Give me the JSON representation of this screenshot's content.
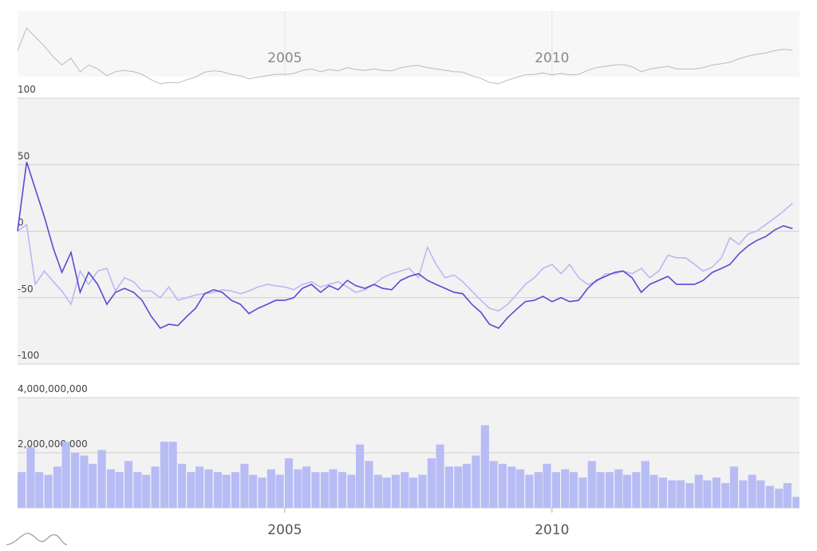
{
  "chart_data": [
    {
      "type": "line",
      "grid": true,
      "x": [
        2000,
        2000.17,
        2000.33,
        2000.5,
        2000.67,
        2000.83,
        2001,
        2001.17,
        2001.33,
        2001.5,
        2001.67,
        2001.83,
        2002,
        2002.17,
        2002.33,
        2002.5,
        2002.67,
        2002.83,
        2003,
        2003.17,
        2003.33,
        2003.5,
        2003.67,
        2003.83,
        2004,
        2004.17,
        2004.33,
        2004.5,
        2004.67,
        2004.83,
        2005,
        2005.17,
        2005.33,
        2005.5,
        2005.67,
        2005.83,
        2006,
        2006.17,
        2006.33,
        2006.5,
        2006.67,
        2006.83,
        2007,
        2007.17,
        2007.33,
        2007.5,
        2007.67,
        2007.83,
        2008,
        2008.17,
        2008.33,
        2008.5,
        2008.67,
        2008.83,
        2009,
        2009.17,
        2009.33,
        2009.5,
        2009.67,
        2009.83,
        2010,
        2010.17,
        2010.33,
        2010.5,
        2010.67,
        2010.83,
        2011,
        2011.17,
        2011.33,
        2011.5,
        2011.67,
        2011.83,
        2012,
        2012.17,
        2012.33,
        2012.5,
        2012.67,
        2012.83,
        2013,
        2013.17,
        2013.33,
        2013.5,
        2013.67,
        2013.83,
        2014,
        2014.17,
        2014.33,
        2014.5
      ],
      "xlim": [
        2000,
        2014.63
      ],
      "xticks": [
        2005,
        2010
      ],
      "ylim": [
        -100,
        100
      ],
      "yticks": [
        100,
        50,
        0,
        -50,
        -100
      ],
      "series": [
        {
          "color": "#b9b9f5",
          "values": [
            0,
            5,
            -40,
            -30,
            -38,
            -45,
            -55,
            -30,
            -40,
            -30,
            -28,
            -45,
            -35,
            -38,
            -45,
            -45,
            -50,
            -42,
            -52,
            -50,
            -48,
            -47,
            -46,
            -44,
            -45,
            -47,
            -45,
            -42,
            -40,
            -41,
            -42,
            -44,
            -40,
            -38,
            -42,
            -40,
            -38,
            -42,
            -46,
            -44,
            -40,
            -35,
            -32,
            -30,
            -28,
            -35,
            -12,
            -25,
            -35,
            -33,
            -38,
            -45,
            -52,
            -58,
            -60,
            -55,
            -48,
            -40,
            -35,
            -28,
            -25,
            -32,
            -25,
            -35,
            -40,
            -38,
            -32,
            -32,
            -30,
            -32,
            -28,
            -35,
            -30,
            -18,
            -20,
            -20,
            -25,
            -30,
            -27,
            -20,
            -5,
            -10,
            -2,
            0,
            5,
            10,
            15,
            21
          ]
        },
        {
          "color": "#5a4bd2",
          "values": [
            0,
            52,
            32,
            11,
            -13,
            -31,
            -16,
            -46,
            -31,
            -40,
            -55,
            -46,
            -43,
            -46,
            -52,
            -64,
            -73,
            -70,
            -71,
            -64,
            -58,
            -47,
            -44,
            -46,
            -52,
            -55,
            -62,
            -58,
            -55,
            -52,
            -52,
            -50,
            -43,
            -40,
            -46,
            -41,
            -44,
            -37,
            -41,
            -43,
            -40,
            -43,
            -44,
            -37,
            -34,
            -32,
            -37,
            -40,
            -43,
            -46,
            -47,
            -55,
            -61,
            -70,
            -73,
            -65,
            -59,
            -53,
            -52,
            -49,
            -53,
            -50,
            -53,
            -52,
            -43,
            -37,
            -34,
            -31,
            -30,
            -35,
            -46,
            -40,
            -37,
            -34,
            -40,
            -40,
            -40,
            -37,
            -31,
            -28,
            -25,
            -17,
            -11,
            -7,
            -4,
            1,
            4,
            2
          ]
        }
      ]
    },
    {
      "type": "bar",
      "grid": true,
      "color": "#b8bcf5",
      "x": [
        2000,
        2000.17,
        2000.33,
        2000.5,
        2000.67,
        2000.83,
        2001,
        2001.17,
        2001.33,
        2001.5,
        2001.67,
        2001.83,
        2002,
        2002.17,
        2002.33,
        2002.5,
        2002.67,
        2002.83,
        2003,
        2003.17,
        2003.33,
        2003.5,
        2003.67,
        2003.83,
        2004,
        2004.17,
        2004.33,
        2004.5,
        2004.67,
        2004.83,
        2005,
        2005.17,
        2005.33,
        2005.5,
        2005.67,
        2005.83,
        2006,
        2006.17,
        2006.33,
        2006.5,
        2006.67,
        2006.83,
        2007,
        2007.17,
        2007.33,
        2007.5,
        2007.67,
        2007.83,
        2008,
        2008.17,
        2008.33,
        2008.5,
        2008.67,
        2008.83,
        2009,
        2009.17,
        2009.33,
        2009.5,
        2009.67,
        2009.83,
        2010,
        2010.17,
        2010.33,
        2010.5,
        2010.67,
        2010.83,
        2011,
        2011.17,
        2011.33,
        2011.5,
        2011.67,
        2011.83,
        2012,
        2012.17,
        2012.33,
        2012.5,
        2012.67,
        2012.83,
        2013,
        2013.17,
        2013.33,
        2013.5,
        2013.67,
        2013.83,
        2014,
        2014.17,
        2014.33,
        2014.5
      ],
      "xlim": [
        2000,
        2014.63
      ],
      "xticks": [
        2005,
        2010
      ],
      "ylim": [
        0,
        4000000000
      ],
      "yticks": [
        {
          "value": 4000000000,
          "label": "4,000,000,000"
        },
        {
          "value": 2000000000,
          "label": "2,000,000,000"
        },
        0
      ],
      "values": [
        1300000000,
        2200000000,
        1300000000,
        1200000000,
        1500000000,
        2400000000,
        2000000000,
        1900000000,
        1600000000,
        2100000000,
        1400000000,
        1300000000,
        1700000000,
        1300000000,
        1200000000,
        1500000000,
        2400000000,
        2400000000,
        1600000000,
        1300000000,
        1500000000,
        1400000000,
        1300000000,
        1200000000,
        1300000000,
        1600000000,
        1200000000,
        1100000000,
        1400000000,
        1200000000,
        1800000000,
        1400000000,
        1500000000,
        1300000000,
        1300000000,
        1400000000,
        1300000000,
        1200000000,
        2300000000,
        1700000000,
        1200000000,
        1100000000,
        1200000000,
        1300000000,
        1100000000,
        1200000000,
        1800000000,
        2300000000,
        1500000000,
        1500000000,
        1600000000,
        1900000000,
        3000000000,
        1700000000,
        1600000000,
        1500000000,
        1400000000,
        1200000000,
        1300000000,
        1600000000,
        1300000000,
        1400000000,
        1300000000,
        1100000000,
        1700000000,
        1300000000,
        1300000000,
        1400000000,
        1200000000,
        1300000000,
        1700000000,
        1200000000,
        1100000000,
        1000000000,
        1000000000,
        900000000,
        1200000000,
        1000000000,
        1100000000,
        900000000,
        1500000000,
        1000000000,
        1200000000,
        1000000000,
        800000000,
        700000000,
        900000000,
        400000000
      ]
    }
  ]
}
